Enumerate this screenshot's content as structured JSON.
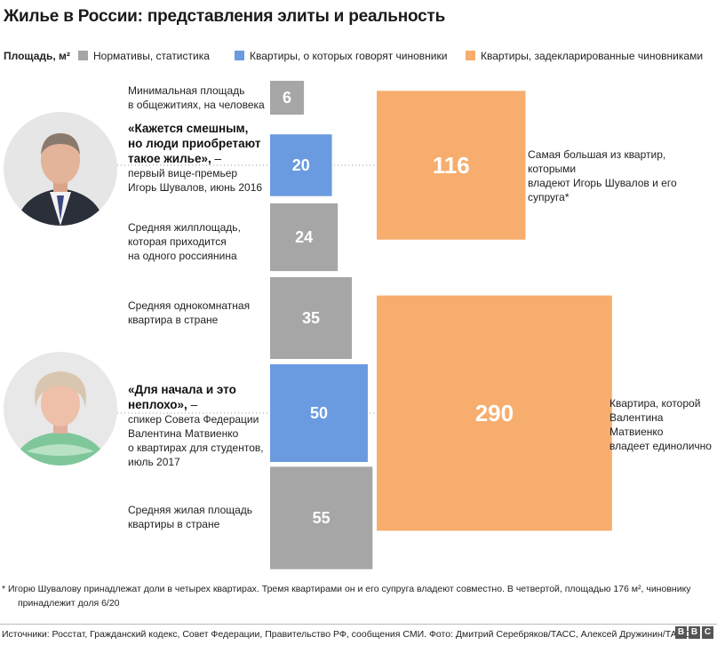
{
  "title": "Жилье в России: представления элиты и реальность",
  "legend": {
    "unit": "Площадь, м²",
    "items": [
      {
        "label": "Нормативы, статистика",
        "color": "#a6a6a6"
      },
      {
        "label": "Квартиры, о которых говорят чиновники",
        "color": "#6a9be0"
      },
      {
        "label": "Квартиры, задекларированные чиновниками",
        "color": "#f7ad6d"
      }
    ]
  },
  "rows": [
    {
      "desc": "Минимальная площадь\nв общежитиях, на человека"
    },
    {
      "quote": "«Кажется смешным,\nно люди приобретают\nтакое жилье»,",
      "quote_tail": " –",
      "note": "первый вице-премьер\nИгорь Шувалов, июнь 2016"
    },
    {
      "desc": "Средняя жилплощадь,\nкоторая приходится\nна одного россиянина"
    },
    {
      "desc": "Средняя однокомнатная\nквартира в стране"
    },
    {
      "quote": "«Для начала и это\nнеплохо»,",
      "quote_tail": " –",
      "note": "спикер Совета Федерации\nВалентина Матвиенко\nо квартирах для студентов,\nиюль 2017"
    },
    {
      "desc": "Средняя жилая площадь\nквартиры в стране"
    }
  ],
  "right_labels": [
    "Самая большая из квартир, которыми\nвладеют Игорь Шувалов и его супруга*",
    "Квартира, которой\nВалентина Матвиенко\nвладеет единолично"
  ],
  "chart_data": {
    "type": "bar",
    "title": "Жилье в России: представления элиты и реальность",
    "unit": "м²",
    "series": [
      {
        "name": "Нормативы, статистика",
        "color": "#a6a6a6",
        "values": [
          6,
          24,
          35,
          55
        ]
      },
      {
        "name": "Квартиры, о которых говорят чиновники",
        "color": "#6a9be0",
        "values": [
          20,
          50
        ]
      },
      {
        "name": "Квартиры, задекларированные чиновниками",
        "color": "#f7ad6d",
        "values": [
          116,
          290
        ]
      }
    ],
    "bars": [
      {
        "value": 6,
        "series": 0,
        "label": "6"
      },
      {
        "value": 20,
        "series": 1,
        "label": "20"
      },
      {
        "value": 24,
        "series": 0,
        "label": "24"
      },
      {
        "value": 35,
        "series": 0,
        "label": "35"
      },
      {
        "value": 50,
        "series": 1,
        "label": "50"
      },
      {
        "value": 55,
        "series": 0,
        "label": "55"
      },
      {
        "value": 116,
        "series": 2,
        "label": "116"
      },
      {
        "value": 290,
        "series": 2,
        "label": "290"
      }
    ],
    "bar_style": "square area proportional to value"
  },
  "footnote": {
    "line1": "* Игорю Шувалову принадлежат доли в четырех квартирах. Тремя квартирами он и его супруга владеют совместно. В четвертой, площадью 176 м², чиновнику",
    "line2": "принадлежит доля 6/20"
  },
  "sources": "Источники: Росстат, Гражданский кодекс, Совет Федерации, Правительство РФ, сообщения СМИ.  Фото: Дмитрий Серебряков/ТАСС, Алексей Дружинин/ТАСС",
  "brand": [
    "B",
    "B",
    "C"
  ]
}
